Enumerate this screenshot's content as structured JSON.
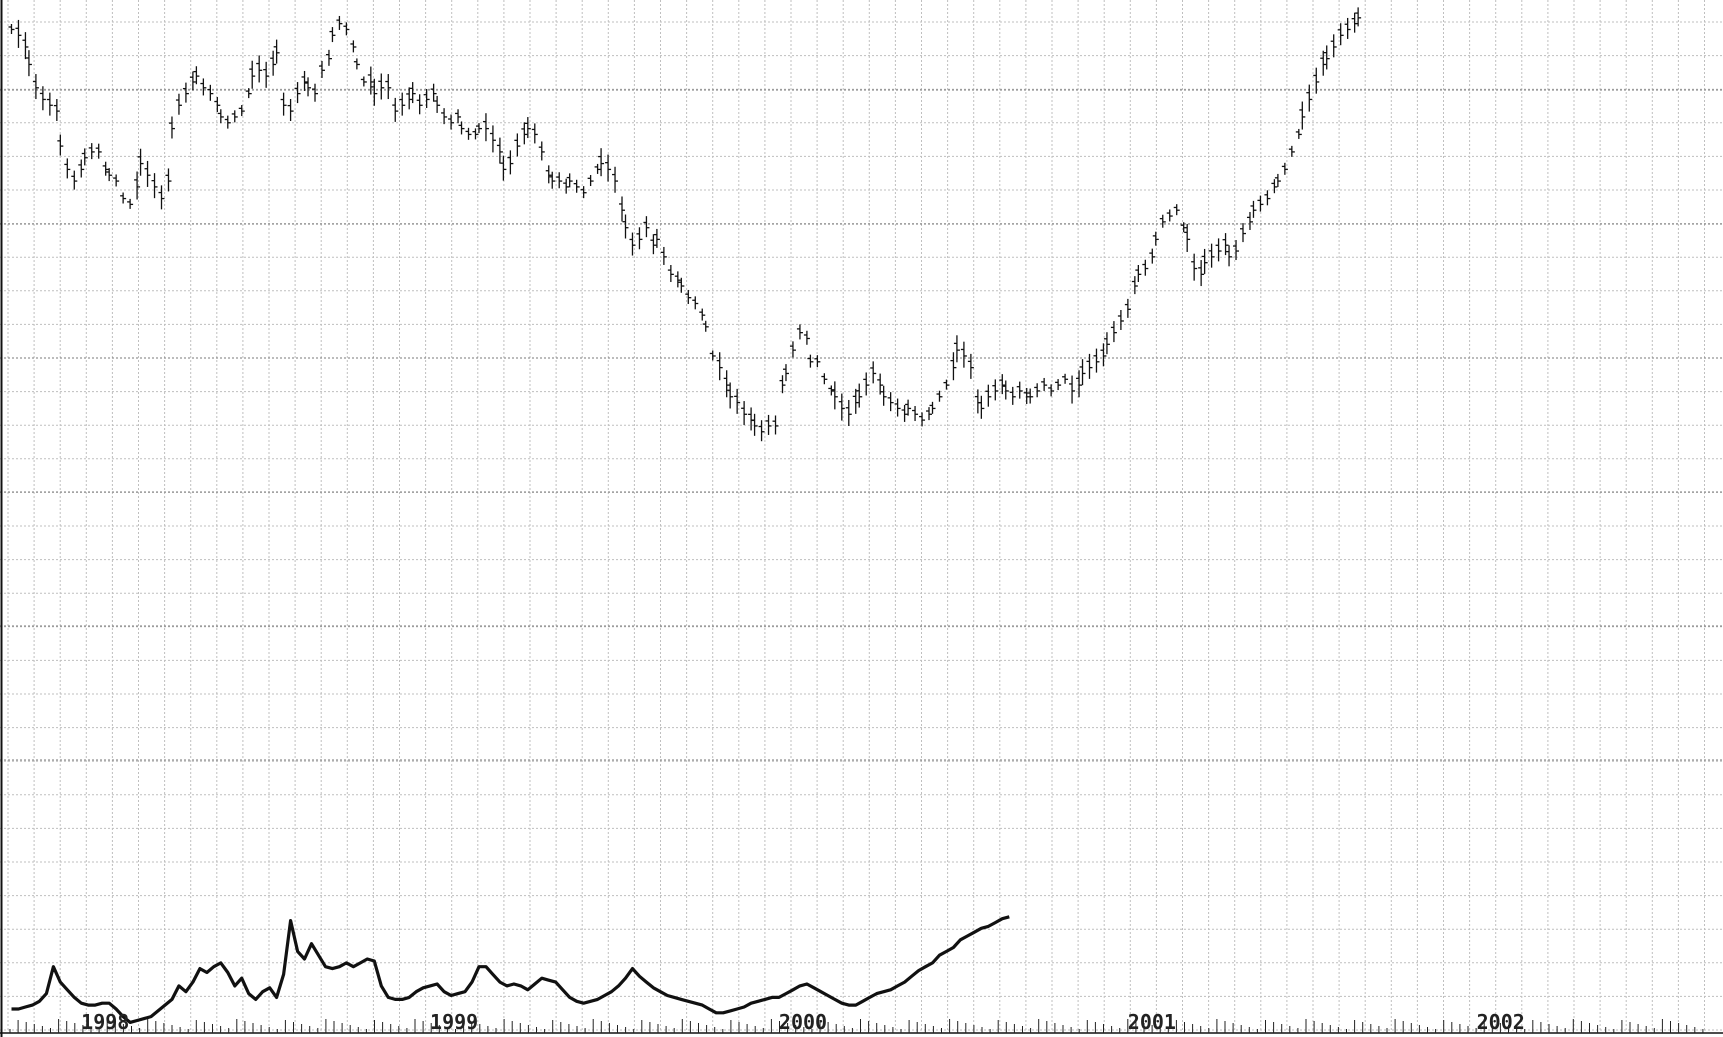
{
  "chart_data": [
    {
      "type": "ohlc",
      "grid": true,
      "x_ticks": [
        "1998",
        "1999",
        "2000",
        "2001",
        "2002"
      ],
      "x_range": [
        1997.73,
        2002.6
      ],
      "ylim": [
        0,
        100
      ],
      "axis_labels_visible": false,
      "values": [
        [
          1997.74,
          97
        ],
        [
          1997.76,
          96
        ],
        [
          1997.78,
          94
        ],
        [
          1997.79,
          91
        ],
        [
          1997.81,
          87
        ],
        [
          1997.83,
          85
        ],
        [
          1997.85,
          84
        ],
        [
          1997.87,
          83
        ],
        [
          1997.88,
          77
        ],
        [
          1997.9,
          73
        ],
        [
          1997.92,
          71
        ],
        [
          1997.94,
          73
        ],
        [
          1997.95,
          75
        ],
        [
          1997.97,
          76
        ],
        [
          1997.99,
          76
        ],
        [
          1998.01,
          73
        ],
        [
          1998.02,
          72
        ],
        [
          1998.04,
          71
        ],
        [
          1998.06,
          68
        ],
        [
          1998.08,
          67
        ],
        [
          1998.1,
          70
        ],
        [
          1998.11,
          74
        ],
        [
          1998.13,
          72
        ],
        [
          1998.15,
          70
        ],
        [
          1998.17,
          68
        ],
        [
          1998.19,
          71
        ],
        [
          1998.2,
          80
        ],
        [
          1998.22,
          84
        ],
        [
          1998.24,
          86
        ],
        [
          1998.26,
          88
        ],
        [
          1998.27,
          89
        ],
        [
          1998.29,
          87
        ],
        [
          1998.31,
          86
        ],
        [
          1998.33,
          84
        ],
        [
          1998.34,
          82
        ],
        [
          1998.36,
          81
        ],
        [
          1998.38,
          82
        ],
        [
          1998.4,
          83
        ],
        [
          1998.42,
          86
        ],
        [
          1998.43,
          89
        ],
        [
          1998.45,
          90
        ],
        [
          1998.47,
          89
        ],
        [
          1998.49,
          91
        ],
        [
          1998.5,
          93
        ],
        [
          1998.52,
          84
        ],
        [
          1998.54,
          83
        ],
        [
          1998.56,
          86
        ],
        [
          1998.58,
          88
        ],
        [
          1998.59,
          87
        ],
        [
          1998.61,
          86
        ],
        [
          1998.63,
          90
        ],
        [
          1998.65,
          92
        ],
        [
          1998.66,
          96
        ],
        [
          1998.68,
          98
        ],
        [
          1998.7,
          97
        ],
        [
          1998.72,
          94
        ],
        [
          1998.73,
          91
        ],
        [
          1998.75,
          88
        ],
        [
          1998.77,
          88
        ],
        [
          1998.78,
          86
        ],
        [
          1998.8,
          87
        ],
        [
          1998.82,
          87
        ],
        [
          1998.84,
          83
        ],
        [
          1998.86,
          84
        ],
        [
          1998.88,
          85
        ],
        [
          1998.89,
          86
        ],
        [
          1998.91,
          84
        ],
        [
          1998.93,
          85
        ],
        [
          1998.95,
          86
        ],
        [
          1998.96,
          84
        ],
        [
          1998.98,
          82
        ],
        [
          1999.0,
          81
        ],
        [
          1999.02,
          82
        ],
        [
          1999.03,
          80
        ],
        [
          1999.05,
          79
        ],
        [
          1999.07,
          79
        ],
        [
          1999.08,
          80
        ],
        [
          1999.1,
          80
        ],
        [
          1999.12,
          78
        ],
        [
          1999.14,
          76
        ],
        [
          1999.15,
          73
        ],
        [
          1999.17,
          74
        ],
        [
          1999.19,
          77
        ],
        [
          1999.21,
          79
        ],
        [
          1999.22,
          80
        ],
        [
          1999.24,
          79
        ],
        [
          1999.26,
          76
        ],
        [
          1999.28,
          72
        ],
        [
          1999.29,
          71
        ],
        [
          1999.31,
          71
        ],
        [
          1999.33,
          70
        ],
        [
          1999.34,
          71
        ],
        [
          1999.36,
          70
        ],
        [
          1999.38,
          69
        ],
        [
          1999.4,
          71
        ],
        [
          1999.42,
          73
        ],
        [
          1999.43,
          74
        ],
        [
          1999.45,
          73
        ],
        [
          1999.47,
          71
        ],
        [
          1999.49,
          66
        ],
        [
          1999.5,
          63
        ],
        [
          1999.52,
          60
        ],
        [
          1999.54,
          61
        ],
        [
          1999.56,
          63
        ],
        [
          1999.58,
          60
        ],
        [
          1999.59,
          61
        ],
        [
          1999.61,
          58
        ],
        [
          1999.63,
          55
        ],
        [
          1999.65,
          54
        ],
        [
          1999.66,
          53
        ],
        [
          1999.68,
          51
        ],
        [
          1999.7,
          50
        ],
        [
          1999.72,
          48
        ],
        [
          1999.73,
          46
        ],
        [
          1999.75,
          41
        ],
        [
          1999.77,
          39
        ],
        [
          1999.79,
          36
        ],
        [
          1999.8,
          34
        ],
        [
          1999.82,
          33
        ],
        [
          1999.84,
          31
        ],
        [
          1999.86,
          30
        ],
        [
          1999.87,
          29
        ],
        [
          1999.89,
          28
        ],
        [
          1999.91,
          29
        ],
        [
          1999.93,
          29
        ],
        [
          1999.95,
          36
        ],
        [
          1999.96,
          38
        ],
        [
          1999.98,
          42
        ],
        [
          2000.0,
          45
        ],
        [
          2000.02,
          44
        ],
        [
          2000.03,
          40
        ],
        [
          2000.05,
          40
        ],
        [
          2000.07,
          37
        ],
        [
          2000.09,
          35
        ],
        [
          2000.1,
          34
        ],
        [
          2000.12,
          32
        ],
        [
          2000.14,
          31
        ],
        [
          2000.16,
          33
        ],
        [
          2000.17,
          34
        ],
        [
          2000.19,
          36
        ],
        [
          2000.21,
          38
        ],
        [
          2000.23,
          36
        ],
        [
          2000.24,
          34
        ],
        [
          2000.26,
          33
        ],
        [
          2000.28,
          32
        ],
        [
          2000.3,
          31
        ],
        [
          2000.31,
          32
        ],
        [
          2000.33,
          31
        ],
        [
          2000.35,
          30
        ],
        [
          2000.37,
          31
        ],
        [
          2000.38,
          32
        ],
        [
          2000.4,
          34
        ],
        [
          2000.42,
          36
        ],
        [
          2000.44,
          39
        ],
        [
          2000.45,
          42
        ],
        [
          2000.47,
          41
        ],
        [
          2000.49,
          39
        ],
        [
          2000.51,
          33
        ],
        [
          2000.52,
          32
        ],
        [
          2000.54,
          34
        ],
        [
          2000.56,
          35
        ],
        [
          2000.58,
          36
        ],
        [
          2000.59,
          35
        ],
        [
          2000.61,
          34
        ],
        [
          2000.63,
          35
        ],
        [
          2000.65,
          34
        ],
        [
          2000.66,
          34
        ],
        [
          2000.68,
          35
        ],
        [
          2000.7,
          36
        ],
        [
          2000.72,
          35
        ],
        [
          2000.74,
          36
        ],
        [
          2000.76,
          37
        ],
        [
          2000.78,
          35
        ],
        [
          2000.8,
          36
        ],
        [
          2000.81,
          38
        ],
        [
          2000.83,
          39
        ],
        [
          2000.85,
          40
        ],
        [
          2000.87,
          41
        ],
        [
          2000.88,
          43
        ],
        [
          2000.9,
          45
        ],
        [
          2000.92,
          47
        ],
        [
          2000.94,
          49
        ],
        [
          2000.96,
          53
        ],
        [
          2000.97,
          55
        ],
        [
          2000.99,
          56
        ],
        [
          2001.01,
          58
        ],
        [
          2001.02,
          61
        ],
        [
          2001.04,
          64
        ],
        [
          2001.06,
          65
        ],
        [
          2001.08,
          66
        ],
        [
          2001.1,
          63
        ],
        [
          2001.11,
          61
        ],
        [
          2001.13,
          56
        ],
        [
          2001.15,
          55
        ],
        [
          2001.16,
          57
        ],
        [
          2001.18,
          58
        ],
        [
          2001.2,
          59
        ],
        [
          2001.22,
          60
        ],
        [
          2001.23,
          58
        ],
        [
          2001.25,
          59
        ],
        [
          2001.27,
          62
        ],
        [
          2001.29,
          64
        ],
        [
          2001.3,
          66
        ],
        [
          2001.32,
          67
        ],
        [
          2001.34,
          68
        ],
        [
          2001.36,
          70
        ],
        [
          2001.37,
          71
        ],
        [
          2001.39,
          73
        ],
        [
          2001.41,
          76
        ],
        [
          2001.43,
          79
        ],
        [
          2001.44,
          82
        ],
        [
          2001.46,
          85
        ],
        [
          2001.48,
          88
        ],
        [
          2001.5,
          91
        ],
        [
          2001.51,
          92
        ],
        [
          2001.53,
          94
        ],
        [
          2001.55,
          96
        ],
        [
          2001.57,
          97
        ],
        [
          2001.59,
          98
        ],
        [
          2001.6,
          99
        ]
      ]
    },
    {
      "type": "line",
      "grid": true,
      "ylim": [
        0,
        100
      ],
      "values": [
        [
          1997.74,
          12
        ],
        [
          1997.76,
          12
        ],
        [
          1997.78,
          13
        ],
        [
          1997.8,
          14
        ],
        [
          1997.82,
          16
        ],
        [
          1997.84,
          20
        ],
        [
          1997.86,
          34
        ],
        [
          1997.88,
          26
        ],
        [
          1997.9,
          22
        ],
        [
          1997.92,
          18
        ],
        [
          1997.94,
          15
        ],
        [
          1997.96,
          14
        ],
        [
          1997.98,
          14
        ],
        [
          1998.0,
          15
        ],
        [
          1998.02,
          15
        ],
        [
          1998.04,
          12
        ],
        [
          1998.06,
          8
        ],
        [
          1998.08,
          5
        ],
        [
          1998.1,
          6
        ],
        [
          1998.12,
          7
        ],
        [
          1998.14,
          8
        ],
        [
          1998.16,
          11
        ],
        [
          1998.18,
          14
        ],
        [
          1998.2,
          17
        ],
        [
          1998.22,
          24
        ],
        [
          1998.24,
          21
        ],
        [
          1998.26,
          26
        ],
        [
          1998.28,
          33
        ],
        [
          1998.3,
          31
        ],
        [
          1998.32,
          34
        ],
        [
          1998.34,
          36
        ],
        [
          1998.36,
          31
        ],
        [
          1998.38,
          24
        ],
        [
          1998.4,
          28
        ],
        [
          1998.42,
          20
        ],
        [
          1998.44,
          17
        ],
        [
          1998.46,
          21
        ],
        [
          1998.48,
          23
        ],
        [
          1998.5,
          18
        ],
        [
          1998.52,
          30
        ],
        [
          1998.54,
          58
        ],
        [
          1998.56,
          42
        ],
        [
          1998.58,
          38
        ],
        [
          1998.6,
          46
        ],
        [
          1998.62,
          40
        ],
        [
          1998.64,
          34
        ],
        [
          1998.66,
          33
        ],
        [
          1998.68,
          34
        ],
        [
          1998.7,
          36
        ],
        [
          1998.72,
          34
        ],
        [
          1998.74,
          36
        ],
        [
          1998.76,
          38
        ],
        [
          1998.78,
          37
        ],
        [
          1998.8,
          24
        ],
        [
          1998.82,
          18
        ],
        [
          1998.84,
          17
        ],
        [
          1998.86,
          17
        ],
        [
          1998.88,
          18
        ],
        [
          1998.9,
          21
        ],
        [
          1998.92,
          23
        ],
        [
          1998.94,
          24
        ],
        [
          1998.96,
          25
        ],
        [
          1998.98,
          21
        ],
        [
          1999.0,
          19
        ],
        [
          1999.02,
          20
        ],
        [
          1999.04,
          21
        ],
        [
          1999.06,
          26
        ],
        [
          1999.08,
          34
        ],
        [
          1999.1,
          34
        ],
        [
          1999.12,
          30
        ],
        [
          1999.14,
          26
        ],
        [
          1999.16,
          24
        ],
        [
          1999.18,
          25
        ],
        [
          1999.2,
          24
        ],
        [
          1999.22,
          22
        ],
        [
          1999.24,
          25
        ],
        [
          1999.26,
          28
        ],
        [
          1999.28,
          27
        ],
        [
          1999.3,
          26
        ],
        [
          1999.32,
          22
        ],
        [
          1999.34,
          18
        ],
        [
          1999.36,
          16
        ],
        [
          1999.38,
          15
        ],
        [
          1999.4,
          16
        ],
        [
          1999.42,
          17
        ],
        [
          1999.44,
          19
        ],
        [
          1999.46,
          21
        ],
        [
          1999.48,
          24
        ],
        [
          1999.5,
          28
        ],
        [
          1999.52,
          33
        ],
        [
          1999.54,
          29
        ],
        [
          1999.56,
          26
        ],
        [
          1999.58,
          23
        ],
        [
          1999.6,
          21
        ],
        [
          1999.62,
          19
        ],
        [
          1999.64,
          18
        ],
        [
          1999.66,
          17
        ],
        [
          1999.68,
          16
        ],
        [
          1999.7,
          15
        ],
        [
          1999.72,
          14
        ],
        [
          1999.74,
          12
        ],
        [
          1999.76,
          10
        ],
        [
          1999.78,
          10
        ],
        [
          1999.8,
          11
        ],
        [
          1999.82,
          12
        ],
        [
          1999.84,
          13
        ],
        [
          1999.86,
          15
        ],
        [
          1999.88,
          16
        ],
        [
          1999.9,
          17
        ],
        [
          1999.92,
          18
        ],
        [
          1999.94,
          18
        ],
        [
          1999.96,
          20
        ],
        [
          1999.98,
          22
        ],
        [
          2000.0,
          24
        ],
        [
          2000.02,
          25
        ],
        [
          2000.04,
          23
        ],
        [
          2000.06,
          21
        ],
        [
          2000.08,
          19
        ],
        [
          2000.1,
          17
        ],
        [
          2000.12,
          15
        ],
        [
          2000.14,
          14
        ],
        [
          2000.16,
          14
        ],
        [
          2000.18,
          16
        ],
        [
          2000.2,
          18
        ],
        [
          2000.22,
          20
        ],
        [
          2000.24,
          21
        ],
        [
          2000.26,
          22
        ],
        [
          2000.28,
          24
        ],
        [
          2000.3,
          26
        ],
        [
          2000.32,
          29
        ],
        [
          2000.34,
          32
        ],
        [
          2000.36,
          34
        ],
        [
          2000.38,
          36
        ],
        [
          2000.4,
          40
        ],
        [
          2000.42,
          42
        ],
        [
          2000.44,
          44
        ],
        [
          2000.46,
          48
        ],
        [
          2000.48,
          50
        ],
        [
          2000.5,
          52
        ],
        [
          2000.52,
          54
        ],
        [
          2000.54,
          55
        ],
        [
          2000.56,
          57
        ],
        [
          2000.58,
          59
        ],
        [
          2000.6,
          60
        ]
      ]
    }
  ]
}
